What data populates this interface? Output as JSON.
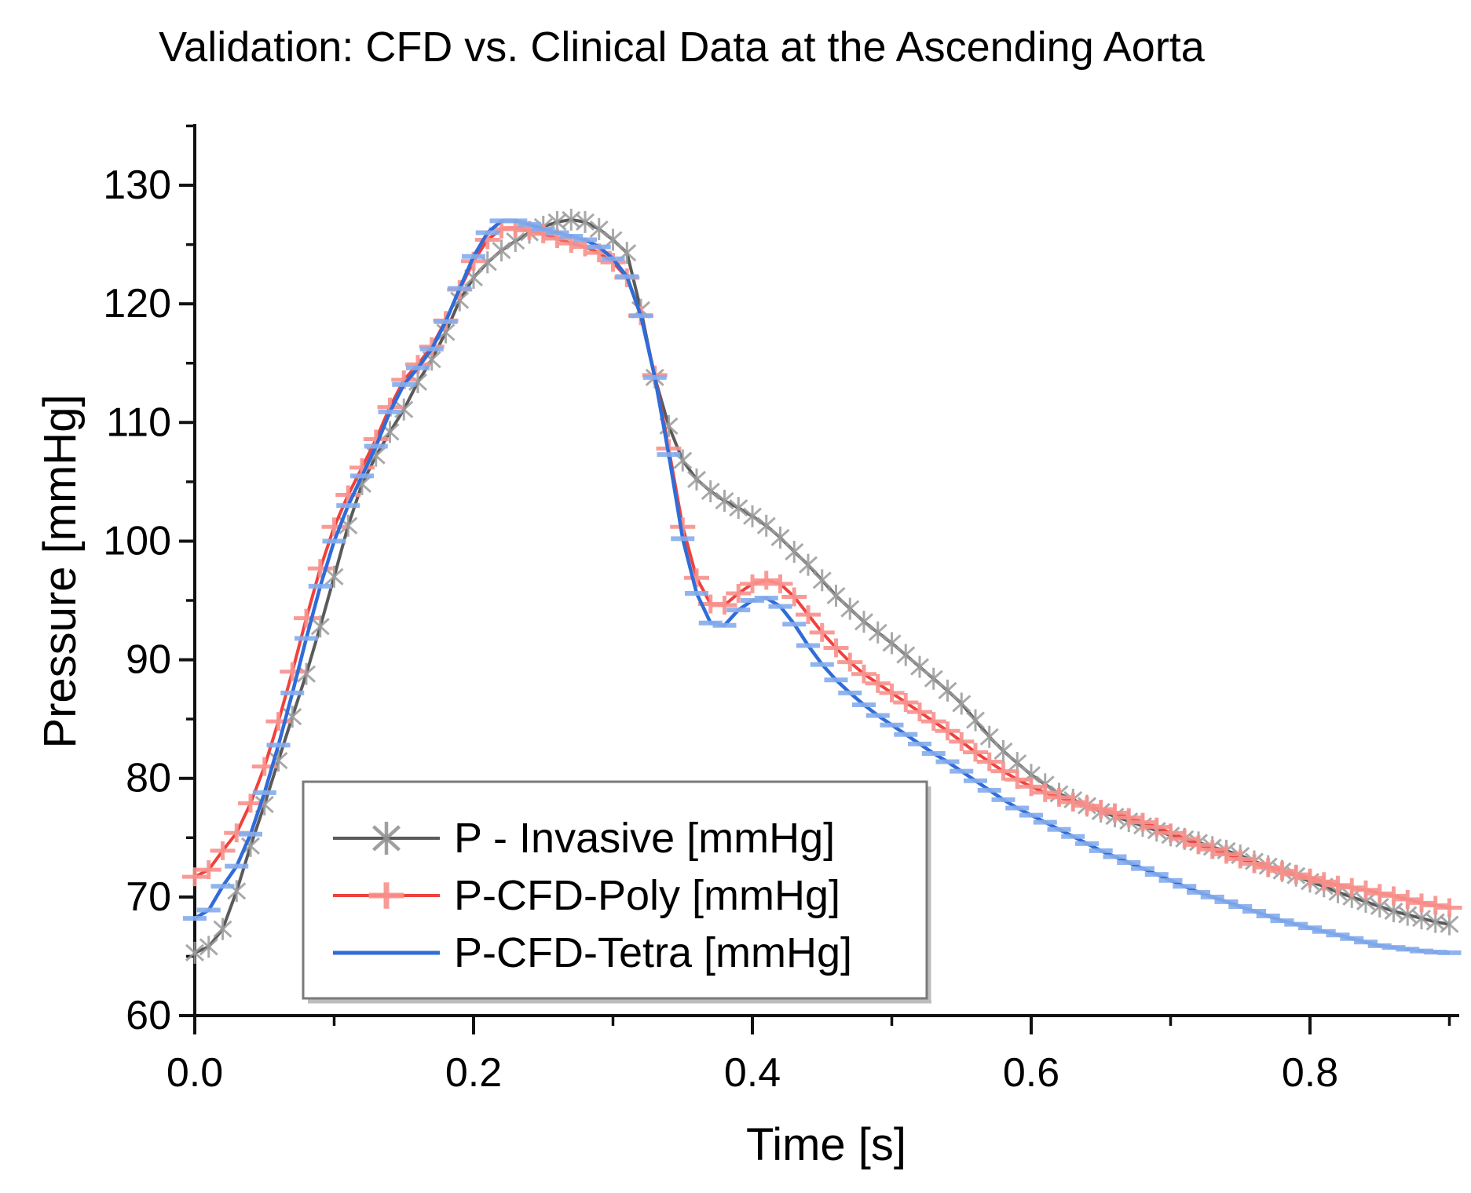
{
  "chart_data": {
    "type": "line",
    "title": "Validation: CFD vs. Clinical Data at the Ascending Aorta",
    "xlabel": "Time [s]",
    "ylabel": "Pressure [mmHg]",
    "xlim": [
      0,
      0.905
    ],
    "ylim": [
      60,
      135
    ],
    "xticks": [
      0.0,
      0.2,
      0.4,
      0.6,
      0.8
    ],
    "xtick_labels": [
      "0.0",
      "0.2",
      "0.4",
      "0.6",
      "0.8"
    ],
    "xticks_minor": [
      0.1,
      0.3,
      0.5,
      0.7,
      0.9
    ],
    "yticks": [
      60,
      70,
      80,
      90,
      100,
      110,
      120,
      130
    ],
    "ytick_labels": [
      "60",
      "70",
      "80",
      "90",
      "100",
      "110",
      "120",
      "130"
    ],
    "yticks_minor": [
      65,
      75,
      85,
      95,
      105,
      115,
      125,
      135
    ],
    "grid": false,
    "legend_position": "inside lower-left",
    "axis_color": "#111111",
    "t_start": 0.0,
    "t_step": 0.01,
    "series": [
      {
        "name": "P - Invasive [mmHg]",
        "color": "#5a5a5a",
        "marker": "star",
        "marker_color": "#9b9b9b",
        "values": [
          65.3,
          65.8,
          67.3,
          70.5,
          74.3,
          77.8,
          81.5,
          85.2,
          88.8,
          92.8,
          97.0,
          101.3,
          104.8,
          107.2,
          109.2,
          111.1,
          113.4,
          115.3,
          117.6,
          120.3,
          122.2,
          123.5,
          124.5,
          125.3,
          126.0,
          126.5,
          126.9,
          127.1,
          126.9,
          126.3,
          125.4,
          124.3,
          119.5,
          113.8,
          109.7,
          106.8,
          105.2,
          104.2,
          103.4,
          102.8,
          102.1,
          101.3,
          100.3,
          99.1,
          98.0,
          96.7,
          95.4,
          94.3,
          93.2,
          92.3,
          91.4,
          90.4,
          89.4,
          88.4,
          87.4,
          86.3,
          84.9,
          83.5,
          82.3,
          81.3,
          80.3,
          79.5,
          78.7,
          78.2,
          77.7,
          77.2,
          76.8,
          76.4,
          76.0,
          75.6,
          75.2,
          74.9,
          74.6,
          74.2,
          73.9,
          73.5,
          73.0,
          72.6,
          72.2,
          71.8,
          71.3,
          70.9,
          70.4,
          70.0,
          69.6,
          69.2,
          68.8,
          68.5,
          68.2,
          67.9,
          67.7
        ]
      },
      {
        "name": "P-CFD-Poly [mmHg]",
        "color": "#f0413c",
        "marker": "plus",
        "marker_color": "#f8918c",
        "values": [
          71.7,
          72.3,
          73.9,
          75.4,
          77.9,
          81.0,
          84.8,
          89.0,
          93.5,
          97.7,
          101.2,
          103.9,
          106.2,
          108.6,
          111.3,
          113.6,
          114.9,
          116.4,
          118.6,
          121.2,
          123.6,
          125.4,
          126.3,
          126.4,
          126.2,
          125.9,
          125.5,
          125.1,
          124.8,
          124.3,
          123.5,
          122.2,
          119.0,
          114.0,
          107.8,
          101.2,
          96.9,
          94.7,
          94.6,
          95.6,
          96.4,
          96.7,
          96.4,
          95.3,
          93.8,
          92.3,
          91.0,
          89.8,
          88.8,
          88.0,
          87.2,
          86.4,
          85.6,
          84.8,
          84.0,
          83.1,
          82.2,
          81.4,
          80.6,
          79.9,
          79.3,
          78.8,
          78.4,
          78.0,
          77.7,
          77.4,
          77.1,
          76.7,
          76.3,
          75.9,
          75.4,
          74.9,
          74.4,
          74.0,
          73.6,
          73.2,
          72.8,
          72.5,
          72.2,
          71.9,
          71.6,
          71.3,
          71.0,
          70.8,
          70.6,
          70.3,
          70.1,
          69.8,
          69.5,
          69.3,
          69.1
        ]
      },
      {
        "name": "P-CFD-Tetra [mmHg]",
        "color": "#2f6cd9",
        "marker": "dash",
        "marker_color": "#85acec",
        "values": [
          68.2,
          68.9,
          70.9,
          72.6,
          75.3,
          78.8,
          82.8,
          87.2,
          91.8,
          96.2,
          100.0,
          103.0,
          105.5,
          108.0,
          110.9,
          113.2,
          114.6,
          116.2,
          118.5,
          121.3,
          124.0,
          126.0,
          127.0,
          127.0,
          126.7,
          126.3,
          126.0,
          125.7,
          125.4,
          124.8,
          123.8,
          122.3,
          119.0,
          113.8,
          107.3,
          100.2,
          95.6,
          93.1,
          92.9,
          94.2,
          95.0,
          95.2,
          94.5,
          93.0,
          91.2,
          89.6,
          88.3,
          87.2,
          86.2,
          85.3,
          84.5,
          83.7,
          82.9,
          82.1,
          81.4,
          80.6,
          79.8,
          79.0,
          78.2,
          77.5,
          76.9,
          76.3,
          75.7,
          75.1,
          74.5,
          73.9,
          73.4,
          72.9,
          72.4,
          71.9,
          71.4,
          70.9,
          70.4,
          70.0,
          69.6,
          69.2,
          68.8,
          68.4,
          68.0,
          67.7,
          67.4,
          67.1,
          66.8,
          66.5,
          66.2,
          65.9,
          65.75,
          65.6,
          65.45,
          65.35,
          65.3
        ]
      }
    ]
  }
}
